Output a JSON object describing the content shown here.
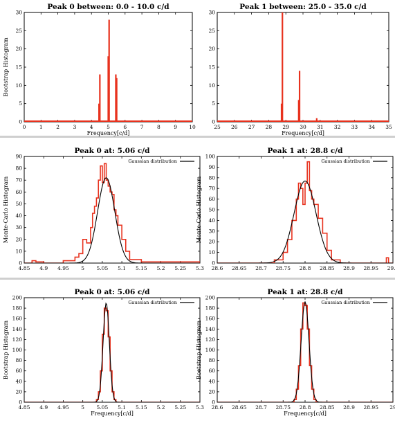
{
  "chart_data": [
    {
      "type": "line",
      "title": "Peak 0 between: 0.0 - 10.0 c/d",
      "xlabel": "Frequency[c/d]",
      "ylabel": "Bootstrap Histogram",
      "xlim": [
        0,
        10
      ],
      "ylim": [
        0,
        30
      ],
      "xticks": [
        0,
        1,
        2,
        3,
        4,
        5,
        6,
        7,
        8,
        9,
        10
      ],
      "xtick_labels": [
        "0",
        "1",
        "2",
        "3",
        "4",
        "5",
        "6",
        "7",
        "8",
        "9",
        "10"
      ],
      "yticks": [
        0,
        5,
        10,
        15,
        20,
        25,
        30
      ],
      "ytick_labels": [
        "0",
        "5",
        "10",
        "15",
        "20",
        "25",
        "30"
      ],
      "legend": "",
      "series": [
        {
          "color": "#e8321e",
          "style": "spikes",
          "x": [
            4.45,
            4.5,
            5.0,
            5.05,
            5.45,
            5.5
          ],
          "y": [
            5,
            13,
            18,
            28,
            13,
            12
          ]
        }
      ]
    },
    {
      "type": "line",
      "title": "Peak 1 between: 25.0 - 35.0 c/d",
      "xlabel": "Frequency[c/d]",
      "ylabel": "",
      "xlim": [
        25,
        35
      ],
      "ylim": [
        0,
        30
      ],
      "xticks": [
        25,
        26,
        27,
        28,
        29,
        30,
        31,
        32,
        33,
        34,
        35
      ],
      "xtick_labels": [
        "25",
        "26",
        "27",
        "28",
        "29",
        "30",
        "31",
        "32",
        "33",
        "34",
        "35"
      ],
      "yticks": [
        0,
        5,
        10,
        15,
        20,
        25,
        30
      ],
      "ytick_labels": [
        "0",
        "5",
        "10",
        "15",
        "20",
        "25",
        "30"
      ],
      "legend": "",
      "series": [
        {
          "color": "#e8321e",
          "style": "spikes",
          "x": [
            28.75,
            28.8,
            29.75,
            29.8,
            30.8
          ],
          "y": [
            5,
            30,
            6,
            14,
            1
          ]
        }
      ]
    },
    {
      "type": "line",
      "title": "Peak 0 at: 5.06 c/d",
      "xlabel": "",
      "ylabel": "Monte-Carlo Histogram",
      "xlim": [
        4.85,
        5.3
      ],
      "ylim": [
        0,
        90
      ],
      "xticks": [
        4.85,
        4.9,
        4.95,
        5.0,
        5.05,
        5.1,
        5.15,
        5.2,
        5.25,
        5.3
      ],
      "xtick_labels": [
        "4.85",
        "4.9",
        "4.95",
        "5",
        "5.05",
        "5.1",
        "5.15",
        "5.2",
        "5.25",
        "5.3"
      ],
      "yticks": [
        0,
        10,
        20,
        30,
        40,
        50,
        60,
        70,
        80,
        90
      ],
      "ytick_labels": [
        "0",
        "10",
        "20",
        "30",
        "40",
        "50",
        "60",
        "70",
        "80",
        "90"
      ],
      "legend": "Gaussian distribution",
      "gaussian": {
        "mu": 5.06,
        "sigma": 0.022,
        "amp": 72
      },
      "series": [
        {
          "color": "#e8321e",
          "style": "steps",
          "x": [
            4.85,
            4.87,
            4.88,
            4.9,
            4.95,
            4.98,
            4.99,
            5.0,
            5.01,
            5.02,
            5.025,
            5.03,
            5.035,
            5.04,
            5.045,
            5.05,
            5.055,
            5.06,
            5.065,
            5.07,
            5.075,
            5.08,
            5.085,
            5.09,
            5.1,
            5.11,
            5.12,
            5.15,
            5.3
          ],
          "y": [
            0,
            2,
            1,
            0,
            2,
            5,
            8,
            20,
            17,
            30,
            42,
            48,
            55,
            70,
            82,
            68,
            84,
            70,
            65,
            60,
            58,
            45,
            40,
            32,
            20,
            10,
            3,
            1,
            0
          ]
        }
      ]
    },
    {
      "type": "line",
      "title": "Peak 1 at: 28.8 c/d",
      "xlabel": "",
      "ylabel": "Monte-Carlo Histogram",
      "xlim": [
        28.6,
        29.0
      ],
      "ylim": [
        0,
        100
      ],
      "xticks": [
        28.6,
        28.65,
        28.7,
        28.75,
        28.8,
        28.85,
        28.9,
        28.95,
        29.0
      ],
      "xtick_labels": [
        "28.6",
        "28.65",
        "28.7",
        "28.75",
        "28.8",
        "28.85",
        "28.9",
        "28.95",
        "29.0"
      ],
      "yticks": [
        0,
        10,
        20,
        30,
        40,
        50,
        60,
        70,
        80,
        90,
        100
      ],
      "ytick_labels": [
        "0",
        "10",
        "20",
        "30",
        "40",
        "50",
        "60",
        "70",
        "80",
        "90",
        "100"
      ],
      "legend": "Gaussian distribution",
      "gaussian": {
        "mu": 28.8,
        "sigma": 0.025,
        "amp": 77
      },
      "series": [
        {
          "color": "#e8321e",
          "style": "steps",
          "x": [
            28.6,
            28.73,
            28.75,
            28.76,
            28.77,
            28.78,
            28.785,
            28.79,
            28.795,
            28.8,
            28.805,
            28.81,
            28.815,
            28.82,
            28.83,
            28.84,
            28.85,
            28.86,
            28.88,
            28.985,
            28.99,
            29.0
          ],
          "y": [
            0,
            3,
            10,
            22,
            40,
            60,
            75,
            70,
            55,
            75,
            95,
            68,
            60,
            55,
            42,
            28,
            12,
            3,
            0,
            5,
            0,
            0
          ]
        }
      ]
    },
    {
      "type": "line",
      "title": "Peak 0 at: 5.06 c/d",
      "xlabel": "Frequency[c/d]",
      "ylabel": "Bootstrap Histogram",
      "xlim": [
        4.85,
        5.3
      ],
      "ylim": [
        0,
        200
      ],
      "xticks": [
        4.85,
        4.9,
        4.95,
        5.0,
        5.05,
        5.1,
        5.15,
        5.2,
        5.25,
        5.3
      ],
      "xtick_labels": [
        "4.85",
        "4.9",
        "4.95",
        "5",
        "5.05",
        "5.1",
        "5.15",
        "5.2",
        "5.25",
        "5.3"
      ],
      "yticks": [
        0,
        20,
        40,
        60,
        80,
        100,
        120,
        140,
        160,
        180,
        200
      ],
      "ytick_labels": [
        "0",
        "20",
        "40",
        "60",
        "80",
        "100",
        "120",
        "140",
        "160",
        "180",
        "200"
      ],
      "legend": "Gaussian distribution",
      "gaussian": {
        "mu": 5.06,
        "sigma": 0.008,
        "amp": 190
      },
      "series": [
        {
          "color": "#e8321e",
          "style": "steps",
          "x": [
            4.85,
            5.035,
            5.04,
            5.045,
            5.05,
            5.055,
            5.06,
            5.065,
            5.07,
            5.075,
            5.08,
            5.085,
            5.3
          ],
          "y": [
            0,
            5,
            20,
            60,
            130,
            180,
            175,
            125,
            60,
            20,
            5,
            0,
            0
          ]
        }
      ]
    },
    {
      "type": "line",
      "title": "Peak 1 at: 28.8 c/d",
      "xlabel": "Frequency[c/d]",
      "ylabel": "Bootstrap Histogram",
      "xlim": [
        28.6,
        29.0
      ],
      "ylim": [
        0,
        200
      ],
      "xticks": [
        28.6,
        28.65,
        28.7,
        28.75,
        28.8,
        28.85,
        28.9,
        28.95,
        29.0
      ],
      "xtick_labels": [
        "28.6",
        "28.65",
        "28.7",
        "28.75",
        "28.8",
        "28.85",
        "28.9",
        "28.95",
        "29"
      ],
      "yticks": [
        0,
        20,
        40,
        60,
        80,
        100,
        120,
        140,
        160,
        180,
        200
      ],
      "ytick_labels": [
        "0",
        "20",
        "40",
        "60",
        "80",
        "100",
        "120",
        "140",
        "160",
        "180",
        "200"
      ],
      "legend": "Gaussian distribution",
      "gaussian": {
        "mu": 28.8,
        "sigma": 0.009,
        "amp": 192
      },
      "series": [
        {
          "color": "#e8321e",
          "style": "steps",
          "x": [
            28.6,
            28.775,
            28.78,
            28.785,
            28.79,
            28.795,
            28.8,
            28.805,
            28.81,
            28.815,
            28.82,
            28.825,
            29.0
          ],
          "y": [
            0,
            5,
            25,
            70,
            140,
            190,
            185,
            140,
            70,
            25,
            5,
            0,
            0
          ]
        }
      ]
    }
  ]
}
